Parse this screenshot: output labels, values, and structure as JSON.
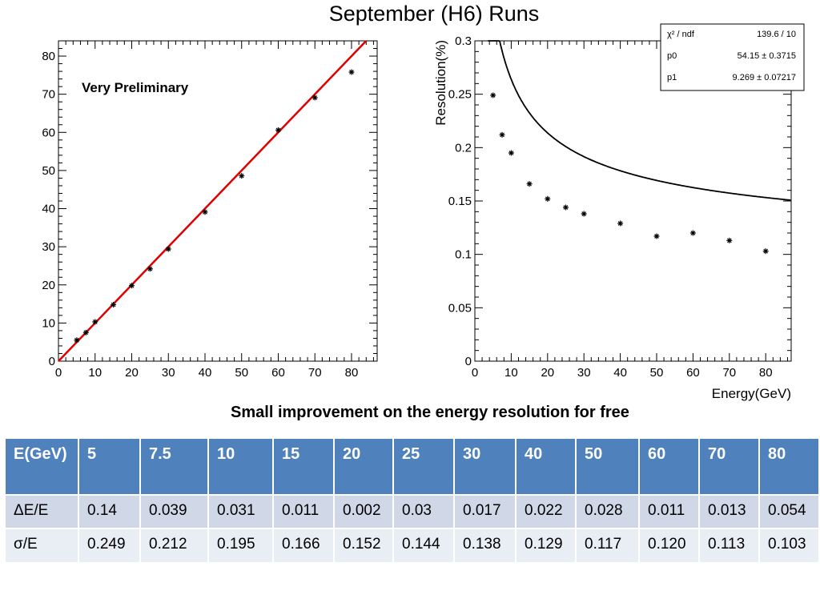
{
  "slide": {
    "title": "September (H6) Runs",
    "caption": "Small improvement on the energy resolution for free"
  },
  "chart_data": [
    {
      "type": "scatter",
      "title": "",
      "annotation": "Very Preliminary",
      "xlabel": "",
      "ylabel": "",
      "xlim": [
        0,
        87
      ],
      "ylim": [
        0,
        84
      ],
      "xticks": [
        0,
        10,
        20,
        30,
        40,
        50,
        60,
        70,
        80
      ],
      "yticks": [
        0,
        10,
        20,
        30,
        40,
        50,
        60,
        70,
        80
      ],
      "points": [
        [
          5,
          5.5
        ],
        [
          7.5,
          7.5
        ],
        [
          10,
          10.3
        ],
        [
          15,
          14.8
        ],
        [
          20,
          19.8
        ],
        [
          25,
          24.2
        ],
        [
          30,
          29.4
        ],
        [
          40,
          39.1
        ],
        [
          50,
          48.6
        ],
        [
          60,
          60.6
        ],
        [
          70,
          69.1
        ],
        [
          80,
          75.8
        ]
      ],
      "fit_line": {
        "color": "#e00000",
        "x": [
          0,
          84
        ],
        "y": [
          0,
          84
        ]
      }
    },
    {
      "type": "scatter",
      "title": "",
      "xlabel": "Energy(GeV)",
      "ylabel": "Resolution(%)",
      "xlim": [
        0,
        87
      ],
      "ylim": [
        0,
        0.3
      ],
      "xticks": [
        0,
        10,
        20,
        30,
        40,
        50,
        60,
        70,
        80
      ],
      "yticks": [
        "0",
        "0.05",
        "0.1",
        "0.15",
        "0.2",
        "0.25",
        "0.3"
      ],
      "points": [
        [
          5,
          0.249
        ],
        [
          7.5,
          0.212
        ],
        [
          10,
          0.195
        ],
        [
          15,
          0.166
        ],
        [
          20,
          0.152
        ],
        [
          25,
          0.144
        ],
        [
          30,
          0.138
        ],
        [
          40,
          0.129
        ],
        [
          50,
          0.117
        ],
        [
          60,
          0.12
        ],
        [
          70,
          0.113
        ],
        [
          80,
          0.103
        ]
      ],
      "fit": {
        "p0": 0.5415,
        "p1": 0.09269
      },
      "stats": [
        {
          "label": "χ² / ndf",
          "value": "139.6 / 10"
        },
        {
          "label": "p0",
          "value": "54.15 ± 0.3715"
        },
        {
          "label": "p1",
          "value": "9.269 ± 0.07217"
        }
      ]
    }
  ],
  "table": {
    "header": [
      "E(GeV)",
      "5",
      "7.5",
      "10",
      "15",
      "20",
      "25",
      "30",
      "40",
      "50",
      "60",
      "70",
      "80"
    ],
    "rows": [
      [
        "ΔE/E",
        "0.14",
        "0.039",
        "0.031",
        "0.011",
        "0.002",
        "0.03",
        "0.017",
        "0.022",
        "0.028",
        "0.011",
        "0.013",
        "0.054"
      ],
      [
        "σ/E",
        "0.249",
        "0.212",
        "0.195",
        "0.166",
        "0.152",
        "0.144",
        "0.138",
        "0.129",
        "0.117",
        "0.120",
        "0.113",
        "0.103"
      ]
    ]
  }
}
